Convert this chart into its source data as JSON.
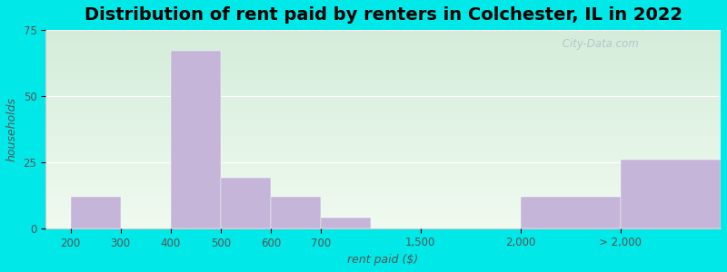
{
  "title": "Distribution of rent paid by renters in Colchester, IL in 2022",
  "xlabel": "rent paid ($)",
  "ylabel": "households",
  "bar_color": "#c4b5d9",
  "background_outer": "#00e8e8",
  "bar_edge_color": "#c4b5d9",
  "categories": [
    "200",
    "300",
    "400",
    "500",
    "600",
    "700",
    "1,500",
    "2,000",
    "> 2,000"
  ],
  "bar_heights": [
    12,
    0,
    67,
    19,
    12,
    4,
    0,
    12,
    26
  ],
  "bar_positions": [
    0,
    1,
    2,
    3,
    4,
    5,
    7,
    9,
    11
  ],
  "bar_widths": [
    1,
    1,
    1,
    1,
    1,
    1,
    2,
    2,
    2
  ],
  "tick_positions": [
    0,
    1,
    2,
    3,
    4,
    5,
    7,
    9,
    11
  ],
  "tick_labels": [
    "200",
    "300",
    "400",
    "500",
    "600",
    "700",
    "1,500",
    "2,000",
    "> 2,000"
  ],
  "xlim": [
    -0.5,
    13.0
  ],
  "ylim": [
    0,
    75
  ],
  "yticks": [
    0,
    25,
    50,
    75
  ],
  "title_fontsize": 14,
  "label_fontsize": 9,
  "tick_fontsize": 8.5,
  "watermark": " City-Data.com",
  "grad_top": "#d4edda",
  "grad_bottom": "#f0faf0"
}
